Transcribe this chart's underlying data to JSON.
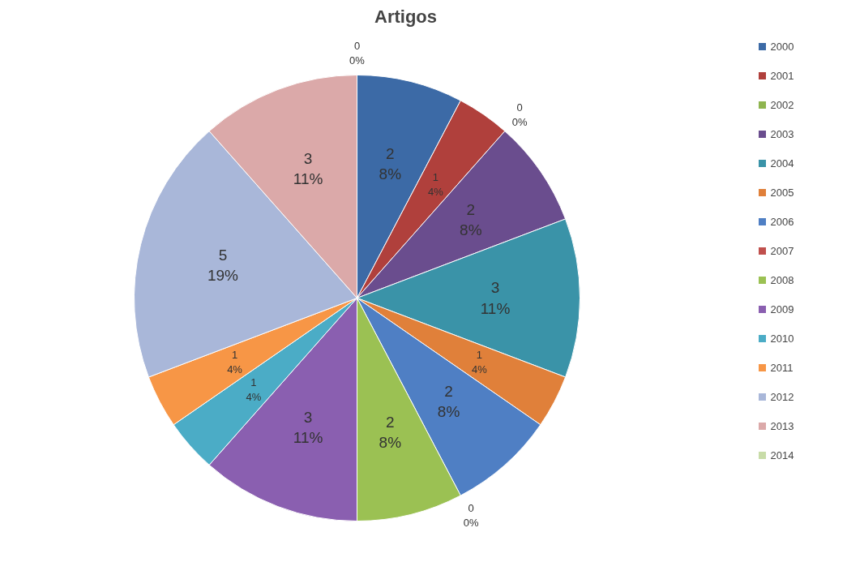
{
  "chart_data": {
    "type": "pie",
    "title": "Artigos",
    "categories": [
      "2000",
      "2001",
      "2002",
      "2003",
      "2004",
      "2005",
      "2006",
      "2007",
      "2008",
      "2009",
      "2010",
      "2011",
      "2012",
      "2013",
      "2014"
    ],
    "values": [
      2,
      1,
      0,
      2,
      3,
      1,
      2,
      0,
      2,
      3,
      1,
      1,
      5,
      3,
      0
    ],
    "value_labels": [
      "2\n8%",
      "1\n4%",
      "0\n0%",
      "2\n8%",
      "3\n11%",
      "1\n4%",
      "2\n8%",
      "0\n0%",
      "2\n8%",
      "3\n11%",
      "1\n4%",
      "1\n4%",
      "5\n19%",
      "3\n11%",
      "0\n0%"
    ],
    "colors": [
      "#3c6aa6",
      "#b0403c",
      "#8fb54f",
      "#6a4d8e",
      "#3a93a8",
      "#e0803a",
      "#4f7fc4",
      "#c0504d",
      "#9bc153",
      "#8a5fb0",
      "#4bacc6",
      "#f79646",
      "#a9b7d9",
      "#dba9a9",
      "#c8dca8"
    ],
    "legend": "right"
  }
}
